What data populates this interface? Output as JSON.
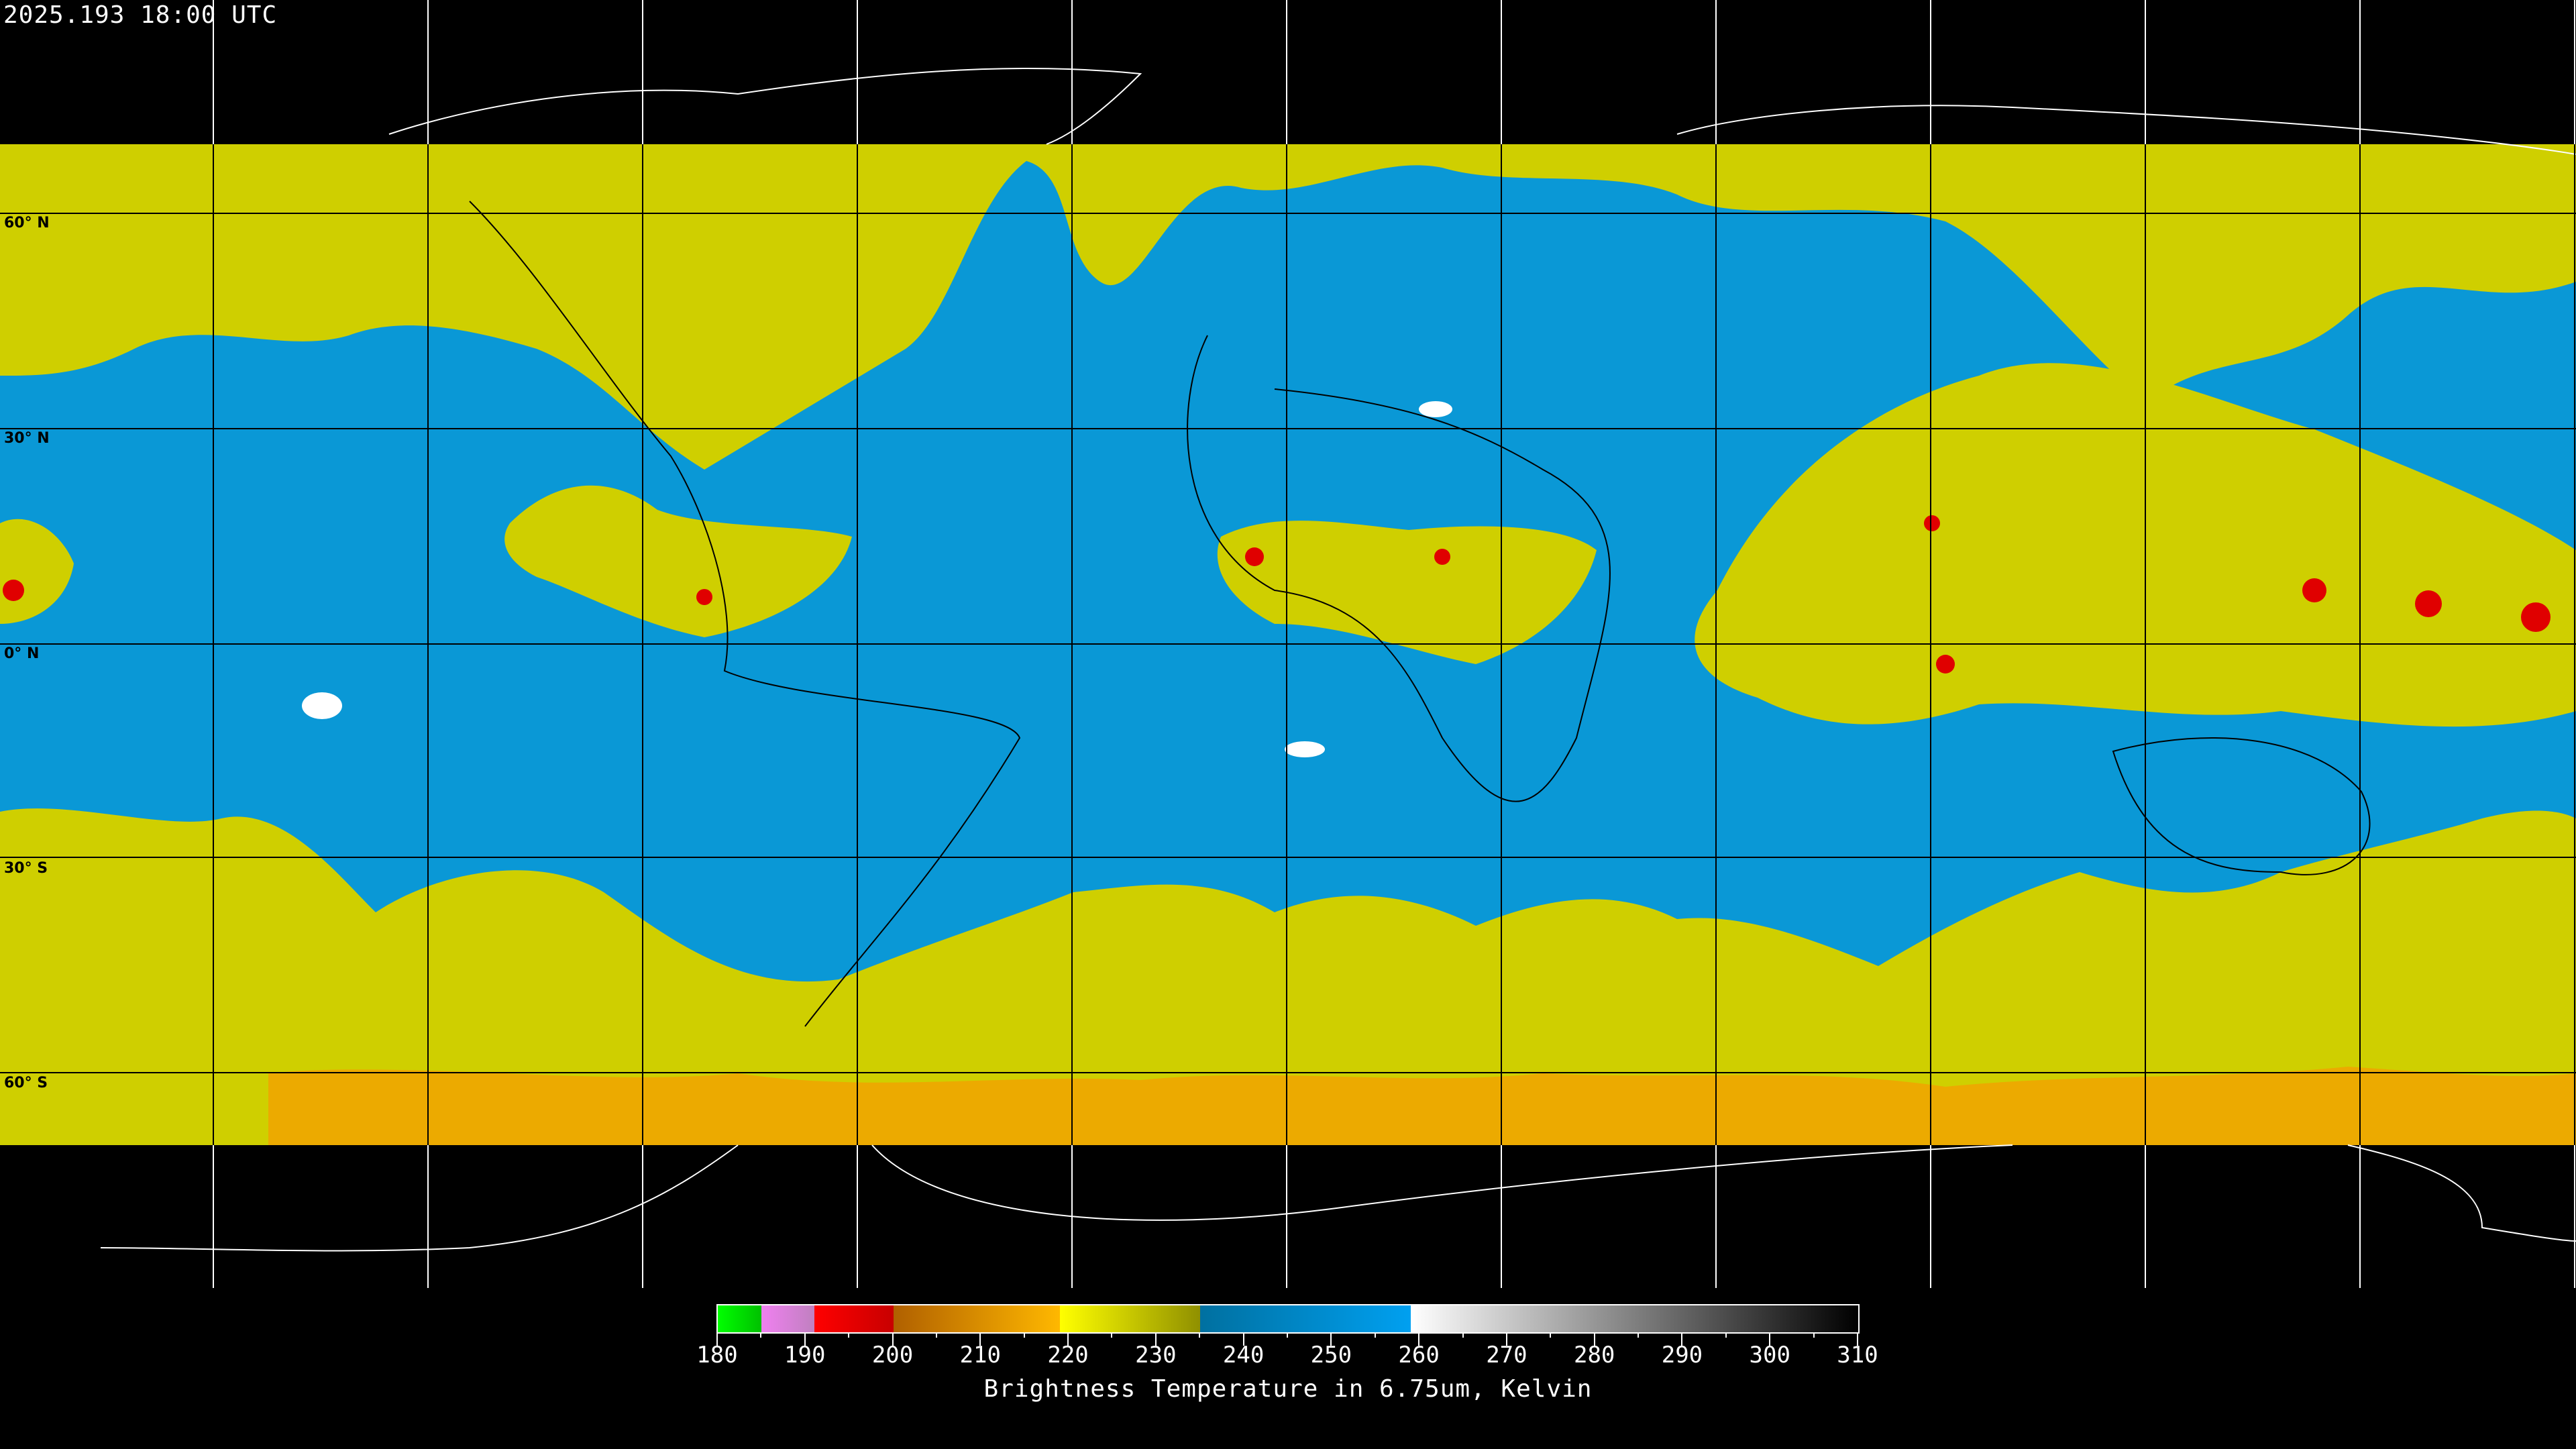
{
  "header": {
    "timestamp": "2025.193 18:00 UTC"
  },
  "map": {
    "product": "Brightness Temperature in 6.75um",
    "lat_labels": [
      "60° N",
      "30° N",
      "0° N",
      "30° S",
      "60° S"
    ],
    "colors": {
      "dry": "#0a98d6",
      "moist": "#cfcf00",
      "cold": "#f2a000",
      "very_cold": "#e00000",
      "no_data": "#000000",
      "coastline_on_data": "#000000",
      "coastline_off_data": "#ffffff"
    }
  },
  "colorbar": {
    "title": "Brightness Temperature in 6.75um, Kelvin",
    "min": 180,
    "max": 310,
    "tick_labels": [
      "180",
      "190",
      "200",
      "210",
      "220",
      "230",
      "240",
      "250",
      "260",
      "270",
      "280",
      "290",
      "300",
      "310"
    ],
    "segments": [
      {
        "from": 180,
        "to": 185,
        "start": "#00ff00",
        "end": "#00c000"
      },
      {
        "from": 185,
        "to": 191,
        "start": "#f080f0",
        "end": "#c080c0"
      },
      {
        "from": 191,
        "to": 200,
        "start": "#ff0000",
        "end": "#c80000"
      },
      {
        "from": 200,
        "to": 219,
        "start": "#b06000",
        "end": "#ffb800"
      },
      {
        "from": 219,
        "to": 235,
        "start": "#ffff00",
        "end": "#909000"
      },
      {
        "from": 235,
        "to": 259,
        "start": "#0070a0",
        "end": "#00a0f0"
      },
      {
        "from": 259,
        "to": 310,
        "start": "#ffffff",
        "end": "#000000"
      }
    ]
  }
}
